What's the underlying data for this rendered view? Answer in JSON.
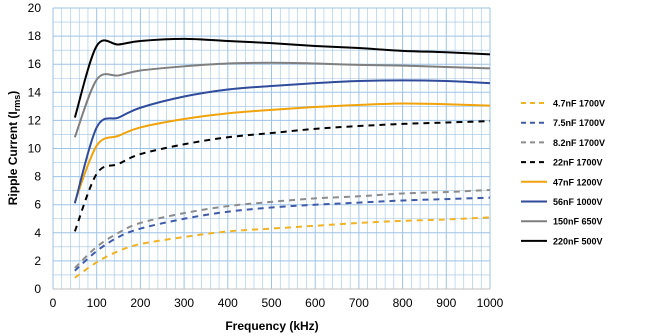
{
  "chart_data": {
    "type": "line",
    "xlabel": "Frequency (kHz)",
    "ylabel_main": "Ripple Current (I",
    "ylabel_sub": "rms",
    "ylabel_close": ")",
    "xlim": [
      0,
      1000
    ],
    "ylim": [
      0,
      20
    ],
    "xticks": [
      0,
      100,
      200,
      300,
      400,
      500,
      600,
      700,
      800,
      900,
      1000
    ],
    "yticks": [
      0,
      2,
      4,
      6,
      8,
      10,
      12,
      14,
      16,
      18,
      20
    ],
    "grid": {
      "major": true,
      "minor_x_step": 20,
      "minor_y_step": 1,
      "color": "#9dc3e6"
    },
    "legend_position": "right",
    "series": [
      {
        "name": "4.7nF 1700V",
        "color": "#f0b323",
        "dash": "dashed",
        "x": [
          50,
          100,
          150,
          200,
          300,
          400,
          500,
          600,
          700,
          800,
          900,
          1000
        ],
        "y": [
          0.8,
          1.9,
          2.7,
          3.2,
          3.7,
          4.1,
          4.3,
          4.5,
          4.7,
          4.85,
          4.95,
          5.1
        ]
      },
      {
        "name": "7.5nF 1700V",
        "color": "#3f5aa8",
        "dash": "dashed",
        "x": [
          50,
          100,
          150,
          200,
          300,
          400,
          500,
          600,
          700,
          800,
          900,
          1000
        ],
        "y": [
          1.3,
          2.7,
          3.7,
          4.3,
          5.0,
          5.5,
          5.8,
          6.0,
          6.15,
          6.3,
          6.4,
          6.5
        ]
      },
      {
        "name": "8.2nF 1700V",
        "color": "#8c8c8c",
        "dash": "dashed",
        "x": [
          50,
          100,
          150,
          200,
          300,
          400,
          500,
          600,
          700,
          800,
          900,
          1000
        ],
        "y": [
          1.5,
          3.0,
          4.0,
          4.7,
          5.4,
          5.9,
          6.2,
          6.45,
          6.6,
          6.8,
          6.9,
          7.05
        ]
      },
      {
        "name": "22nF 1700V",
        "color": "#000000",
        "dash": "dashed",
        "x": [
          50,
          100,
          150,
          200,
          300,
          400,
          500,
          600,
          700,
          800,
          900,
          1000
        ],
        "y": [
          4.1,
          8.2,
          8.9,
          9.6,
          10.3,
          10.8,
          11.1,
          11.4,
          11.6,
          11.75,
          11.85,
          11.95
        ]
      },
      {
        "name": "47nF 1200V",
        "color": "#f0a30a",
        "dash": "solid",
        "x": [
          50,
          100,
          150,
          200,
          300,
          400,
          500,
          600,
          700,
          800,
          900,
          1000
        ],
        "y": [
          6.2,
          10.2,
          10.9,
          11.5,
          12.1,
          12.5,
          12.75,
          12.95,
          13.1,
          13.2,
          13.15,
          13.05
        ]
      },
      {
        "name": "56nF 1000V",
        "color": "#2f4b9a",
        "dash": "solid",
        "x": [
          50,
          100,
          150,
          200,
          300,
          400,
          500,
          600,
          700,
          800,
          900,
          1000
        ],
        "y": [
          6.1,
          11.5,
          12.2,
          12.9,
          13.7,
          14.2,
          14.45,
          14.65,
          14.8,
          14.85,
          14.8,
          14.65
        ]
      },
      {
        "name": "150nF 650V",
        "color": "#7f7f7f",
        "dash": "solid",
        "x": [
          50,
          100,
          150,
          200,
          300,
          400,
          500,
          600,
          700,
          800,
          900,
          1000
        ],
        "y": [
          10.8,
          14.9,
          15.2,
          15.55,
          15.85,
          16.05,
          16.1,
          16.05,
          15.95,
          15.9,
          15.8,
          15.7
        ]
      },
      {
        "name": "220nF 500V",
        "color": "#000000",
        "dash": "solid",
        "x": [
          50,
          100,
          150,
          200,
          300,
          400,
          500,
          600,
          700,
          800,
          900,
          1000
        ],
        "y": [
          12.2,
          17.3,
          17.4,
          17.65,
          17.8,
          17.65,
          17.5,
          17.3,
          17.15,
          16.95,
          16.85,
          16.7
        ]
      }
    ]
  }
}
